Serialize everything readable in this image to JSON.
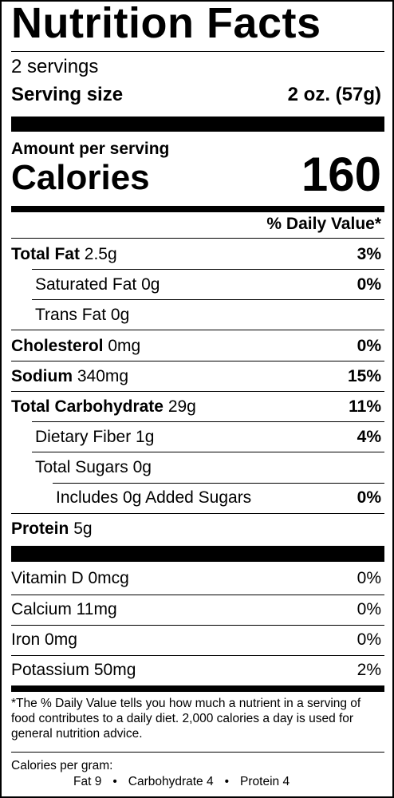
{
  "title": "Nutrition Facts",
  "servings": "2 servings",
  "serving_size": {
    "label": "Serving size",
    "value": "2 oz. (57g)"
  },
  "amount_per_serving": "Amount per serving",
  "calories": {
    "label": "Calories",
    "value": "160"
  },
  "daily_value_header": "% Daily Value*",
  "nutrients": [
    {
      "name": "Total Fat",
      "amount": "2.5g",
      "dv": "3%"
    },
    {
      "name": "Saturated Fat",
      "amount": "0g",
      "dv": "0%"
    },
    {
      "name": "Trans Fat",
      "amount": "0g",
      "dv": ""
    },
    {
      "name": "Cholesterol",
      "amount": "0mg",
      "dv": "0%"
    },
    {
      "name": "Sodium",
      "amount": "340mg",
      "dv": "15%"
    },
    {
      "name": "Total Carbohydrate",
      "amount": "29g",
      "dv": "11%"
    },
    {
      "name": "Dietary Fiber",
      "amount": "1g",
      "dv": "4%"
    },
    {
      "name": "Total Sugars",
      "amount": "0g",
      "dv": ""
    },
    {
      "name": "Includes 0g Added Sugars",
      "amount": "",
      "dv": "0%"
    },
    {
      "name": "Protein",
      "amount": "5g",
      "dv": ""
    }
  ],
  "vitamins": [
    {
      "name": "Vitamin D 0mcg",
      "dv": "0%"
    },
    {
      "name": "Calcium 11mg",
      "dv": "0%"
    },
    {
      "name": "Iron 0mg",
      "dv": "0%"
    },
    {
      "name": "Potassium 50mg",
      "dv": "2%"
    }
  ],
  "footnote": "*The % Daily Value tells you how much a nutrient in a serving of food contributes to a daily diet. 2,000 calories a day is used for general nutrition advice.",
  "calories_per_gram": {
    "label": "Calories per gram:",
    "fat": "Fat 9",
    "carbohydrate": "Carbohydrate 4",
    "protein": "Protein 4",
    "separator": "•"
  }
}
